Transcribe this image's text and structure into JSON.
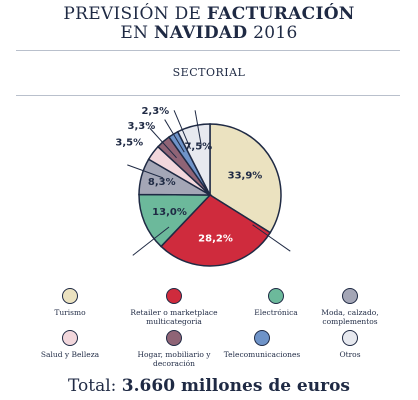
{
  "header": {
    "title_line1_regular": "PREVISIÓN DE ",
    "title_line1_bold": "FACTURACIÓN",
    "title_line2_regular_a": "EN ",
    "title_line2_bold": "NAVIDAD",
    "title_line2_regular_b": " 2016",
    "subtitle": "SECTORIAL"
  },
  "chart_data": {
    "type": "pie",
    "slices": [
      {
        "label": "Turismo",
        "value": 33.9,
        "display": "33,9%",
        "color": "#ebe2c0"
      },
      {
        "label": "Retailer o marketplace multicategoría",
        "value": 28.2,
        "display": "28,2%",
        "color": "#cf2b3d"
      },
      {
        "label": "Electrónica",
        "value": 13.0,
        "display": "13,0%",
        "color": "#6cb99b"
      },
      {
        "label": "Moda, calzado, complementos",
        "value": 8.3,
        "display": "8,3%",
        "color": "#a4a6b6"
      },
      {
        "label": "Salud y Belleza",
        "value": 3.5,
        "display": "3,5%",
        "color": "#f2d7dc"
      },
      {
        "label": "Hogar, mobiliario y decoración",
        "value": 3.3,
        "display": "3,3%",
        "color": "#8f6476"
      },
      {
        "label": "Telecomunicaciones",
        "value": 2.3,
        "display": "2,3%",
        "color": "#6e93c8"
      },
      {
        "label": "Otros",
        "value": 7.5,
        "display": "7,5%",
        "color": "#e7e9ef"
      }
    ]
  },
  "legend": {
    "row1": [
      {
        "label": "Turismo",
        "color": "#ebe2c0"
      },
      {
        "label": "Retailer o marketplace multicategoria",
        "color": "#cf2b3d"
      },
      {
        "label": "Electrónica",
        "color": "#6cb99b"
      },
      {
        "label": "Moda, calzado, complementos",
        "color": "#a4a6b6"
      }
    ],
    "row2": [
      {
        "label": "Salud y Belleza",
        "color": "#f2d7dc"
      },
      {
        "label": "Hogar, mobiliario y decoración",
        "color": "#8f6476"
      },
      {
        "label": "Telecomunicaciones",
        "color": "#6e93c8"
      },
      {
        "label": "Otros",
        "color": "#e7e9ef"
      }
    ]
  },
  "footer": {
    "total_prefix": "Total: ",
    "total_value": "3.660 millones de euros"
  }
}
